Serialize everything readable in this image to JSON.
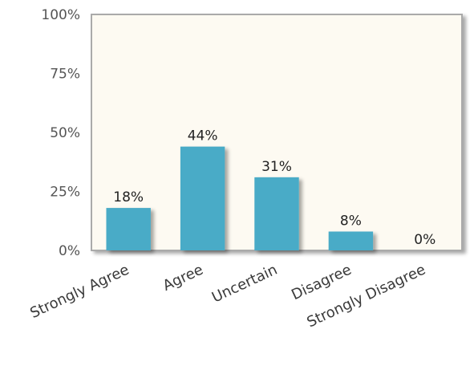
{
  "chart_data": {
    "type": "bar",
    "categories": [
      "Strongly Agree",
      "Agree",
      "Uncertain",
      "Disagree",
      "Strongly Disagree"
    ],
    "values": [
      18,
      44,
      31,
      8,
      0
    ],
    "data_labels": [
      "18%",
      "44%",
      "31%",
      "8%",
      "0%"
    ],
    "yticks": [
      "0%",
      "25%",
      "50%",
      "75%",
      "100%"
    ],
    "ylim": [
      0,
      100
    ],
    "grid": false,
    "colors": {
      "bar": "#4aabc7",
      "plot_background": "#fdfaf2",
      "plot_border": "#aaaaaa"
    }
  }
}
